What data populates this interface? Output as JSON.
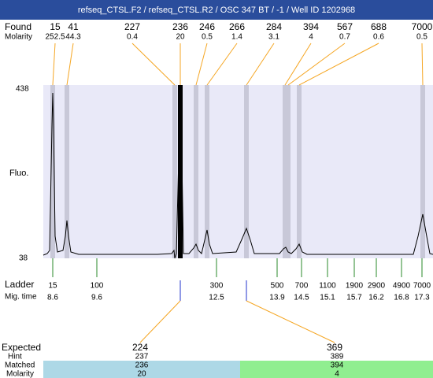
{
  "header": {
    "title": "refseq_CTSL.F2 / refseq_CTSL.R2 / OSC 347 BT / -1 / Well ID 1202968"
  },
  "found": {
    "label": "Found",
    "sizes": [
      "15",
      "41",
      "227",
      "236",
      "246",
      "266",
      "284",
      "394",
      "567",
      "688",
      "7000"
    ],
    "molarity_label": "Molarity",
    "molarity": [
      "252.5",
      "44.3",
      "0.4",
      "20",
      "0.5",
      "1.4",
      "3.1",
      "4",
      "0.7",
      "0.6",
      "0.5"
    ]
  },
  "axis": {
    "y_top": "438",
    "y_bottom": "38",
    "label": "Fluo."
  },
  "ladder": {
    "label": "Ladder",
    "sizes": [
      "15",
      "100",
      "300",
      "500",
      "700",
      "1100",
      "1900",
      "2900",
      "4900",
      "7000"
    ],
    "time_label": "Mig. time",
    "times": [
      "8.6",
      "9.6",
      "12.5",
      "13.9",
      "14.5",
      "15.1",
      "15.7",
      "16.2",
      "16.8",
      "17.3"
    ]
  },
  "expected": {
    "labels": {
      "expected": "Expected",
      "hint": "Hint",
      "matched": "Matched",
      "molarity": "Molarity"
    },
    "items": [
      {
        "expected": "224",
        "hint": "237",
        "matched": "236",
        "molarity": "20"
      },
      {
        "expected": "369",
        "hint": "389",
        "matched": "394",
        "molarity": "4"
      }
    ]
  }
}
